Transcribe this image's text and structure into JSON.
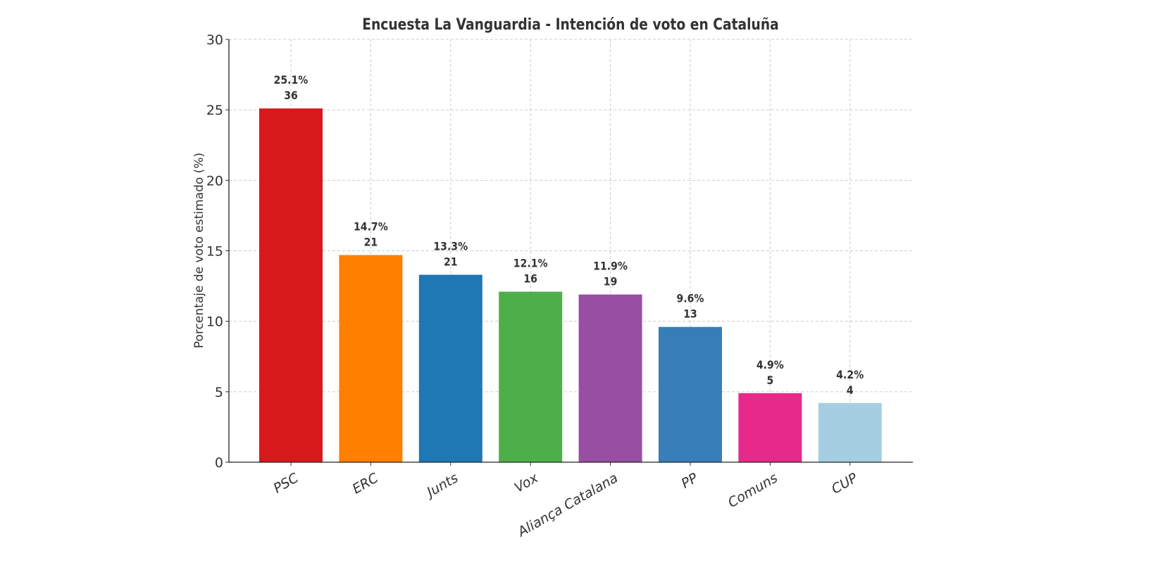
{
  "chart_data": {
    "type": "bar",
    "title": "Encuesta La Vanguardia - Intención de voto en Cataluña",
    "xlabel": "",
    "ylabel": "Porcentaje de voto estimado (%)",
    "ylim": [
      0,
      30
    ],
    "yticks": [
      0,
      5,
      10,
      15,
      20,
      25,
      30
    ],
    "grid": true,
    "categories": [
      "PSC",
      "ERC",
      "Junts",
      "Vox",
      "Aliança Catalana",
      "PP",
      "Comuns",
      "CUP"
    ],
    "values": [
      25.1,
      14.7,
      13.3,
      12.1,
      11.9,
      9.6,
      4.9,
      4.2
    ],
    "seats": [
      36,
      21,
      21,
      16,
      19,
      13,
      5,
      4
    ],
    "labels": [
      "25.1%",
      "14.7%",
      "13.3%",
      "12.1%",
      "11.9%",
      "9.6%",
      "4.9%",
      "4.2%"
    ],
    "colors": [
      "#d7191c",
      "#ff7f00",
      "#1f77b4",
      "#4daf4a",
      "#984ea3",
      "#377eb8",
      "#e7298a",
      "#a6cee3"
    ]
  }
}
